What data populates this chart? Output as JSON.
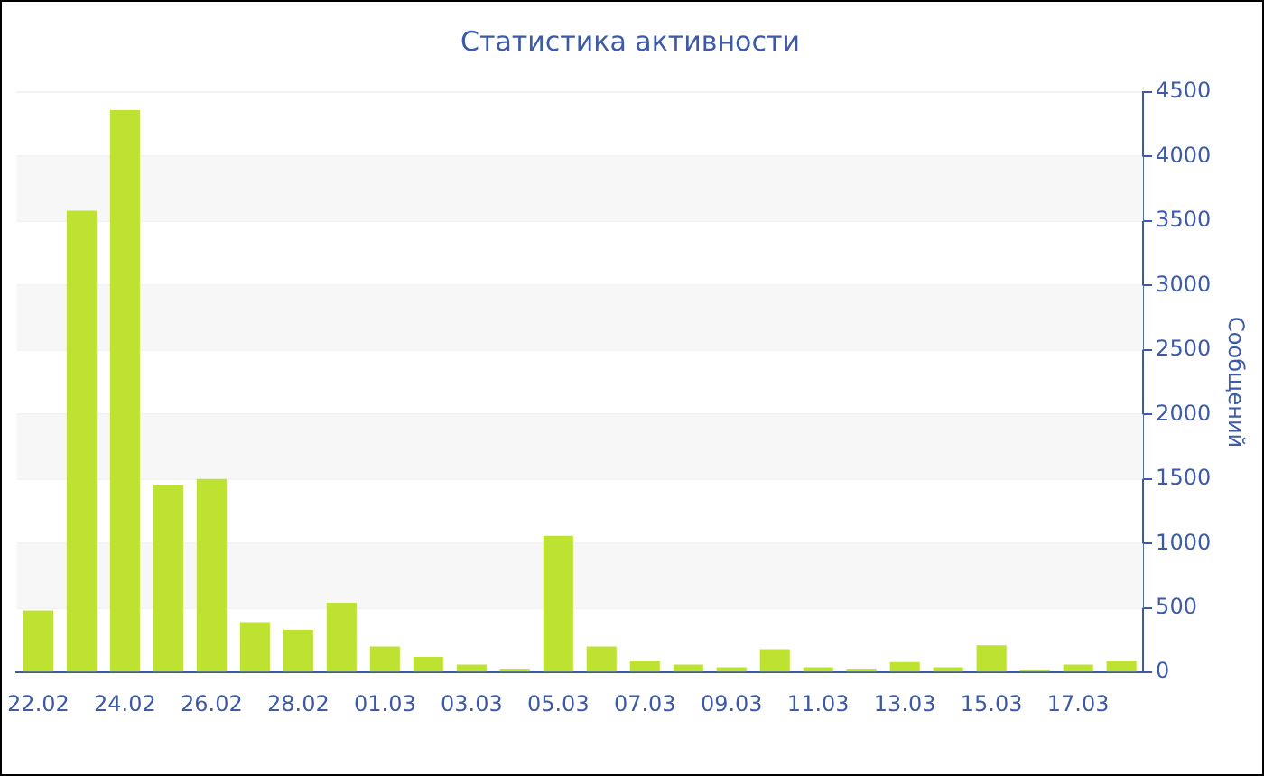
{
  "chart_data": {
    "type": "bar",
    "title": "Статистика активности",
    "ylabel": "Сообщений",
    "categories": [
      "22.02",
      null,
      "24.02",
      null,
      "26.02",
      null,
      "28.02",
      null,
      "01.03",
      null,
      "03.03",
      null,
      "05.03",
      null,
      "07.03",
      null,
      "09.03",
      null,
      "11.03",
      null,
      "13.03",
      null,
      "15.03",
      null,
      "17.03",
      null
    ],
    "values": [
      480,
      3580,
      4360,
      1450,
      1500,
      390,
      330,
      540,
      200,
      120,
      60,
      30,
      1060,
      200,
      90,
      60,
      40,
      180,
      40,
      30,
      80,
      40,
      210,
      20,
      60,
      90
    ],
    "color": "#bde232",
    "ylim": [
      0,
      4500
    ],
    "yticks": [
      0,
      500,
      1000,
      1500,
      2000,
      2500,
      3000,
      3500,
      4000,
      4500
    ],
    "grid": "y",
    "legend": false
  }
}
